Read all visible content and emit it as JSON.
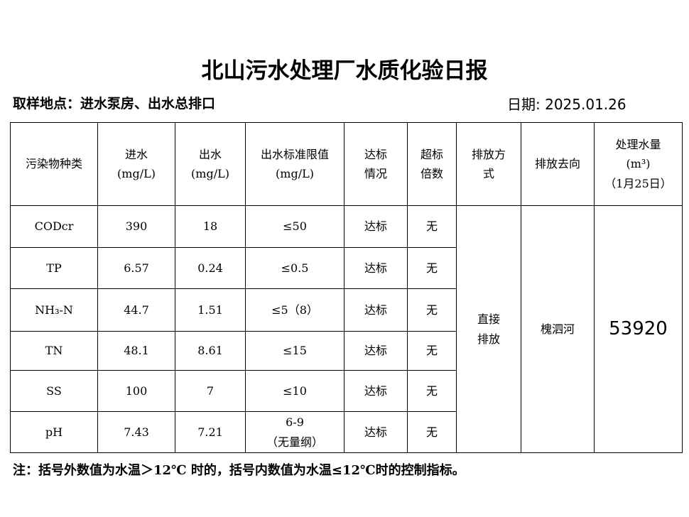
{
  "title": "北山污水处理厂水质化验日报",
  "sampling_location": "取样地点：进水泵房、出水总排口",
  "date": "日期: 2025.01.26",
  "table": {
    "header": [
      "污染物种类",
      "进水\n(mg/L)",
      "出水\n(mg/L)",
      "出水标准限值\n(mg/L)",
      "达标\n情况",
      "超标\n倍数",
      "排放方\n式",
      "排放去向",
      "处理水量\n(m³)\n（1月25日）"
    ],
    "rows": [
      [
        "CODcr",
        390,
        18,
        "≤50",
        "达标",
        "无"
      ],
      [
        "TP",
        6.57,
        0.24,
        "≤0.5",
        "达标",
        "无"
      ],
      [
        "NH₃-N",
        44.7,
        1.51,
        "≤5（8）",
        "达标",
        "无"
      ],
      [
        "TN",
        48.1,
        8.61,
        "≤15",
        "达标",
        "无"
      ],
      [
        "SS",
        100,
        7,
        "≤10",
        "达标",
        "无"
      ],
      [
        "pH",
        7.43,
        7.21,
        "6-9\n（无量纲）",
        "达标",
        "无"
      ]
    ],
    "discharge_method": "直接\n排放",
    "destination": "槐泗河",
    "volume": 53920
  },
  "note": "注：括号外数值为水温＞12℃ 时的，括号内数值为水温≤12℃时的控制指标。"
}
